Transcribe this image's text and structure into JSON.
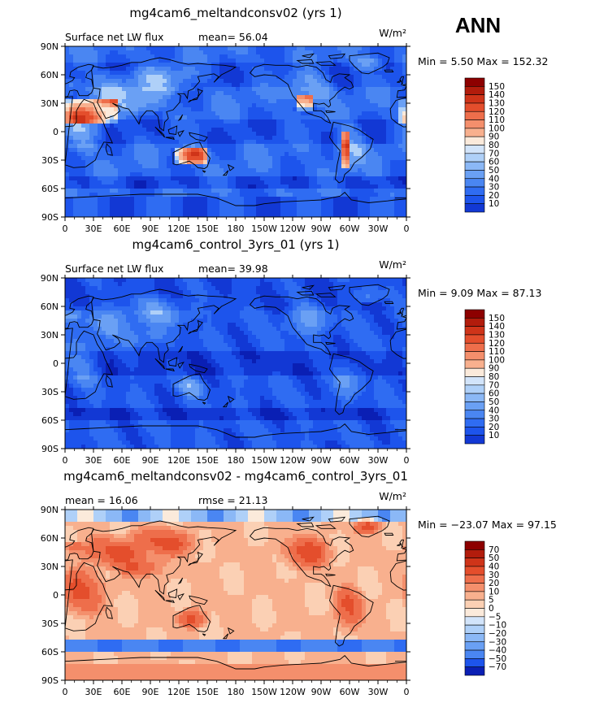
{
  "season": "ANN",
  "colors": {
    "blues": [
      "#00007f",
      "#0a1fb4",
      "#1238d4",
      "#1d54ec",
      "#2f6cf2",
      "#4a86f2",
      "#6aa0f4",
      "#8bb8f6",
      "#afd0f8",
      "#d2e4fa"
    ],
    "cream": "#fbeadb",
    "reds": [
      "#fbd0b4",
      "#f8b08e",
      "#f48f6c",
      "#ee6e4b",
      "#e44e2c",
      "#cf3419",
      "#b21c0c",
      "#8d0000"
    ],
    "land_outline": "#000000"
  },
  "chart_data": [
    {
      "type": "heatmap",
      "title": "mg4cam6_meltandconsv02 (yrs 1)",
      "left_label": "Surface net LW flux",
      "center_label": "mean=   56.04",
      "units": "W/m²",
      "min_max": "Min =    5.50 Max = 152.32",
      "x_ticks": [
        "0",
        "30E",
        "60E",
        "90E",
        "120E",
        "150E",
        "180",
        "150W",
        "120W",
        "90W",
        "60W",
        "30W",
        "0"
      ],
      "y_ticks": [
        "90N",
        "60N",
        "30N",
        "0",
        "30S",
        "60S",
        "90S"
      ],
      "xlim": [
        0,
        360
      ],
      "ylim": [
        -90,
        90
      ],
      "colorbar_levels": [
        "150",
        "140",
        "130",
        "120",
        "110",
        "100",
        "90",
        "80",
        "70",
        "60",
        "50",
        "40",
        "30",
        "20",
        "10"
      ],
      "mean_value": 56.04,
      "min_value": 5.5,
      "max_value": 152.32
    },
    {
      "type": "heatmap",
      "title": "mg4cam6_control_3yrs_01 (yrs 1)",
      "left_label": "Surface net LW flux",
      "center_label": "mean=   39.98",
      "units": "W/m²",
      "min_max": "Min =    9.09 Max =  87.13",
      "x_ticks": [
        "0",
        "30E",
        "60E",
        "90E",
        "120E",
        "150E",
        "180",
        "150W",
        "120W",
        "90W",
        "60W",
        "30W",
        "0"
      ],
      "y_ticks": [
        "90N",
        "60N",
        "30N",
        "0",
        "30S",
        "60S",
        "90S"
      ],
      "xlim": [
        0,
        360
      ],
      "ylim": [
        -90,
        90
      ],
      "colorbar_levels": [
        "150",
        "140",
        "130",
        "120",
        "110",
        "100",
        "90",
        "80",
        "70",
        "60",
        "50",
        "40",
        "30",
        "20",
        "10"
      ],
      "mean_value": 39.98,
      "min_value": 9.09,
      "max_value": 87.13
    },
    {
      "type": "heatmap",
      "title": "mg4cam6_meltandconsv02 - mg4cam6_control_3yrs_01",
      "left_label": "mean =   16.06",
      "center_label": "rmse =   21.13",
      "units": "W/m²",
      "min_max": "Min = −23.07 Max =  97.15",
      "x_ticks": [
        "0",
        "30E",
        "60E",
        "90E",
        "120E",
        "150E",
        "180",
        "150W",
        "120W",
        "90W",
        "60W",
        "30W",
        "0"
      ],
      "y_ticks": [
        "90N",
        "60N",
        "30N",
        "0",
        "30S",
        "60S",
        "90S"
      ],
      "xlim": [
        0,
        360
      ],
      "ylim": [
        -90,
        90
      ],
      "colorbar_levels": [
        "70",
        "50",
        "40",
        "30",
        "20",
        "10",
        "5",
        "0",
        "−5",
        "−10",
        "−20",
        "−30",
        "−40",
        "−50",
        "−70"
      ],
      "mean_value": 16.06,
      "rmse_value": 21.13,
      "min_value": -23.07,
      "max_value": 97.15
    }
  ]
}
